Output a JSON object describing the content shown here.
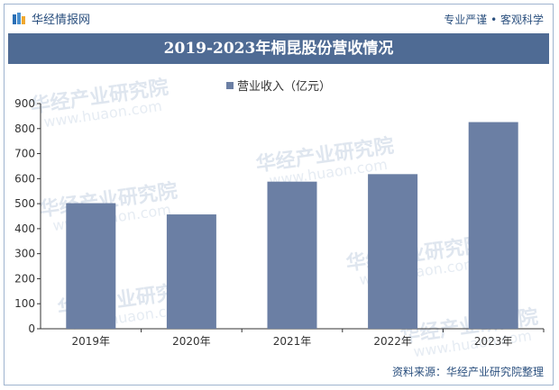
{
  "header": {
    "brand": "华经情报网",
    "tagline": "专业严谨 • 客观科学"
  },
  "title": "2019-2023年桐昆股份营收情况",
  "source": "资料来源：华经产业研究院整理",
  "watermark": {
    "cn": "华经产业研究院",
    "en": "www.huaon.com"
  },
  "colors": {
    "bar": "#6b7fa4",
    "title_band": "#4f6b94",
    "accent": "#2a4f7e"
  },
  "chart_data": {
    "type": "bar",
    "categories": [
      "2019年",
      "2020年",
      "2021年",
      "2022年",
      "2023年"
    ],
    "series": [
      {
        "name": "营业收入（亿元）",
        "values": [
          502,
          457,
          588,
          618,
          826
        ]
      }
    ],
    "yticks": [
      "0",
      "100",
      "200",
      "300",
      "400",
      "500",
      "600",
      "700",
      "800",
      "900"
    ],
    "ylim": [
      0,
      900
    ],
    "legend_position": "top-center",
    "grid": false
  }
}
